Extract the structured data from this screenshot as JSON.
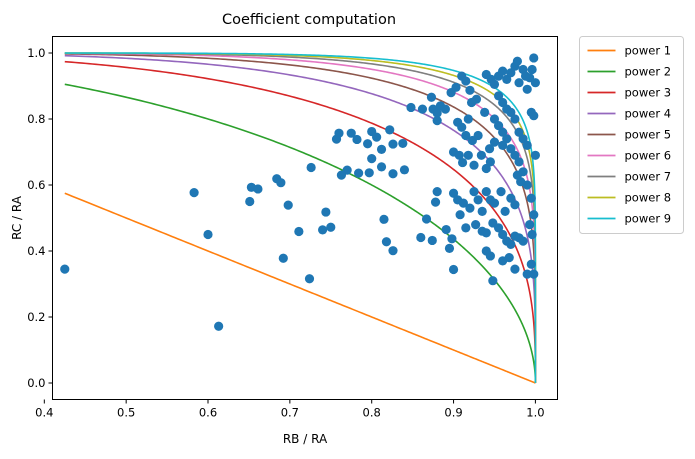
{
  "chart_data": {
    "type": "scatter",
    "title": "Coefficient computation",
    "xlabel": "RB / RA",
    "ylabel": "RC / RA",
    "xlim": [
      0.41,
      1.027
    ],
    "ylim": [
      -0.05,
      1.05
    ],
    "xticks": [
      0.4,
      0.5,
      0.6,
      0.7,
      0.8,
      0.9,
      1.0
    ],
    "yticks": [
      0.0,
      0.2,
      0.4,
      0.6,
      0.8,
      1.0
    ],
    "tick_labels_x": [
      "0.4",
      "0.5",
      "0.6",
      "0.7",
      "0.8",
      "0.9",
      "1.0"
    ],
    "tick_labels_y": [
      "0.0",
      "0.2",
      "0.4",
      "0.6",
      "0.8",
      "1.0"
    ],
    "grid": false,
    "legend_position": "outside-upper-right",
    "curves": {
      "formula": "y = (1 - x^p)^(1/p)",
      "x_range": [
        0.425,
        1.0
      ],
      "series": [
        {
          "name": "power 1",
          "p": 1,
          "color": "#ff7f0e"
        },
        {
          "name": "power 2",
          "p": 2,
          "color": "#2ca02c"
        },
        {
          "name": "power 3",
          "p": 3,
          "color": "#d62728"
        },
        {
          "name": "power 4",
          "p": 4,
          "color": "#9467bd"
        },
        {
          "name": "power 5",
          "p": 5,
          "color": "#8c564b"
        },
        {
          "name": "power 6",
          "p": 6,
          "color": "#e377c2"
        },
        {
          "name": "power 7",
          "p": 7,
          "color": "#7f7f7f"
        },
        {
          "name": "power 8",
          "p": 8,
          "color": "#bcbd22"
        },
        {
          "name": "power 9",
          "p": 9,
          "color": "#17becf"
        }
      ]
    },
    "scatter": {
      "color": "#1f77b4",
      "points": [
        [
          0.425,
          0.345
        ],
        [
          0.613,
          0.172
        ],
        [
          0.583,
          0.577
        ],
        [
          0.6,
          0.45
        ],
        [
          0.651,
          0.55
        ],
        [
          0.653,
          0.593
        ],
        [
          0.661,
          0.588
        ],
        [
          0.684,
          0.619
        ],
        [
          0.689,
          0.607
        ],
        [
          0.698,
          0.539
        ],
        [
          0.692,
          0.378
        ],
        [
          0.711,
          0.459
        ],
        [
          0.726,
          0.653
        ],
        [
          0.724,
          0.316
        ],
        [
          0.74,
          0.464
        ],
        [
          0.744,
          0.518
        ],
        [
          0.75,
          0.472
        ],
        [
          0.757,
          0.739
        ],
        [
          0.76,
          0.757
        ],
        [
          0.775,
          0.757
        ],
        [
          0.77,
          0.645
        ],
        [
          0.763,
          0.63
        ],
        [
          0.784,
          0.636
        ],
        [
          0.797,
          0.637
        ],
        [
          0.812,
          0.655
        ],
        [
          0.826,
          0.634
        ],
        [
          0.84,
          0.646
        ],
        [
          0.8,
          0.762
        ],
        [
          0.806,
          0.745
        ],
        [
          0.822,
          0.767
        ],
        [
          0.826,
          0.724
        ],
        [
          0.838,
          0.726
        ],
        [
          0.795,
          0.725
        ],
        [
          0.782,
          0.738
        ],
        [
          0.812,
          0.708
        ],
        [
          0.8,
          0.68
        ],
        [
          0.815,
          0.496
        ],
        [
          0.818,
          0.428
        ],
        [
          0.826,
          0.401
        ],
        [
          0.86,
          0.441
        ],
        [
          0.867,
          0.497
        ],
        [
          0.874,
          0.432
        ],
        [
          0.891,
          0.465
        ],
        [
          0.898,
          0.437
        ],
        [
          0.9,
          0.344
        ],
        [
          0.895,
          0.408
        ],
        [
          0.848,
          0.835
        ],
        [
          0.862,
          0.83
        ],
        [
          0.873,
          0.866
        ],
        [
          0.875,
          0.83
        ],
        [
          0.88,
          0.818
        ],
        [
          0.884,
          0.84
        ],
        [
          0.89,
          0.83
        ],
        [
          0.88,
          0.795
        ],
        [
          0.897,
          0.88
        ],
        [
          0.903,
          0.896
        ],
        [
          0.91,
          0.93
        ],
        [
          0.915,
          0.915
        ],
        [
          0.92,
          0.887
        ],
        [
          0.905,
          0.79
        ],
        [
          0.91,
          0.775
        ],
        [
          0.915,
          0.75
        ],
        [
          0.923,
          0.735
        ],
        [
          0.93,
          0.75
        ],
        [
          0.9,
          0.7
        ],
        [
          0.907,
          0.69
        ],
        [
          0.911,
          0.668
        ],
        [
          0.918,
          0.69
        ],
        [
          0.925,
          0.66
        ],
        [
          0.934,
          0.69
        ],
        [
          0.94,
          0.65
        ],
        [
          0.945,
          0.67
        ],
        [
          0.88,
          0.58
        ],
        [
          0.878,
          0.548
        ],
        [
          0.9,
          0.575
        ],
        [
          0.905,
          0.555
        ],
        [
          0.912,
          0.545
        ],
        [
          0.92,
          0.53
        ],
        [
          0.925,
          0.58
        ],
        [
          0.93,
          0.555
        ],
        [
          0.935,
          0.52
        ],
        [
          0.94,
          0.58
        ],
        [
          0.945,
          0.555
        ],
        [
          0.95,
          0.545
        ],
        [
          0.958,
          0.58
        ],
        [
          0.963,
          0.52
        ],
        [
          0.97,
          0.56
        ],
        [
          0.975,
          0.54
        ],
        [
          0.908,
          0.51
        ],
        [
          0.915,
          0.47
        ],
        [
          0.927,
          0.48
        ],
        [
          0.935,
          0.46
        ],
        [
          0.94,
          0.455
        ],
        [
          0.948,
          0.485
        ],
        [
          0.955,
          0.47
        ],
        [
          0.96,
          0.45
        ],
        [
          0.965,
          0.43
        ],
        [
          0.97,
          0.42
        ],
        [
          0.975,
          0.445
        ],
        [
          0.98,
          0.44
        ],
        [
          0.985,
          0.43
        ],
        [
          0.94,
          0.4
        ],
        [
          0.945,
          0.385
        ],
        [
          0.948,
          0.31
        ],
        [
          0.96,
          0.37
        ],
        [
          0.968,
          0.38
        ],
        [
          0.975,
          0.345
        ],
        [
          0.99,
          0.33
        ],
        [
          0.995,
          0.36
        ],
        [
          0.998,
          0.33
        ],
        [
          0.94,
          0.935
        ],
        [
          0.946,
          0.92
        ],
        [
          0.95,
          0.905
        ],
        [
          0.955,
          0.93
        ],
        [
          0.96,
          0.945
        ],
        [
          0.965,
          0.92
        ],
        [
          0.97,
          0.94
        ],
        [
          0.975,
          0.96
        ],
        [
          0.978,
          0.975
        ],
        [
          0.98,
          0.91
        ],
        [
          0.985,
          0.95
        ],
        [
          0.988,
          0.93
        ],
        [
          0.99,
          0.89
        ],
        [
          0.993,
          0.925
        ],
        [
          0.996,
          0.95
        ],
        [
          0.998,
          0.985
        ],
        [
          1.0,
          0.91
        ],
        [
          0.955,
          0.87
        ],
        [
          0.96,
          0.85
        ],
        [
          0.965,
          0.83
        ],
        [
          0.97,
          0.82
        ],
        [
          0.975,
          0.8
        ],
        [
          0.98,
          0.76
        ],
        [
          0.985,
          0.74
        ],
        [
          0.99,
          0.72
        ],
        [
          0.995,
          0.82
        ],
        [
          0.998,
          0.81
        ],
        [
          1.0,
          0.69
        ],
        [
          0.95,
          0.8
        ],
        [
          0.955,
          0.78
        ],
        [
          0.96,
          0.76
        ],
        [
          0.965,
          0.74
        ],
        [
          0.97,
          0.71
        ],
        [
          0.975,
          0.69
        ],
        [
          0.98,
          0.67
        ],
        [
          0.985,
          0.64
        ],
        [
          0.99,
          0.6
        ],
        [
          0.995,
          0.56
        ],
        [
          0.998,
          0.51
        ],
        [
          0.993,
          0.48
        ],
        [
          0.996,
          0.45
        ],
        [
          0.982,
          0.61
        ],
        [
          0.978,
          0.63
        ],
        [
          0.96,
          0.72
        ],
        [
          0.95,
          0.73
        ],
        [
          0.944,
          0.71
        ],
        [
          0.938,
          0.82
        ],
        [
          0.928,
          0.86
        ],
        [
          0.922,
          0.85
        ],
        [
          0.918,
          0.8
        ]
      ]
    }
  }
}
